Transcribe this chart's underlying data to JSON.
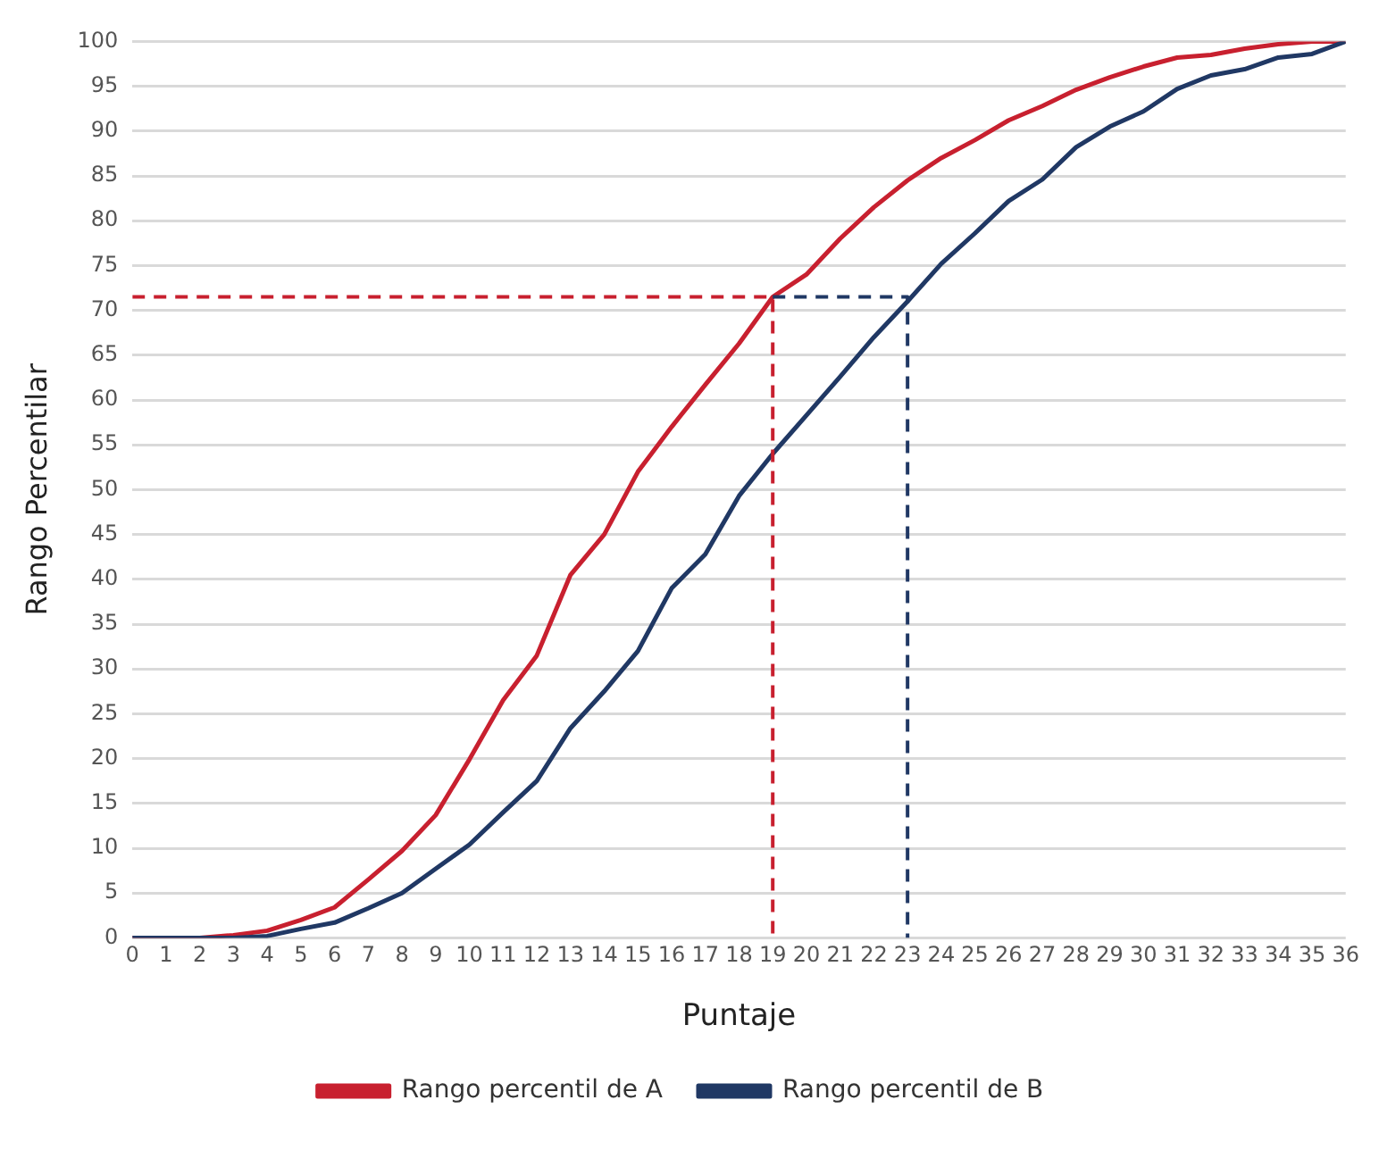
{
  "chart_data": {
    "type": "line",
    "xlabel": "Puntaje",
    "ylabel": "Rango Percentilar",
    "x": [
      0,
      1,
      2,
      3,
      4,
      5,
      6,
      7,
      8,
      9,
      10,
      11,
      12,
      13,
      14,
      15,
      16,
      17,
      18,
      19,
      20,
      21,
      22,
      23,
      24,
      25,
      26,
      27,
      28,
      29,
      30,
      31,
      32,
      33,
      34,
      35,
      36
    ],
    "series": [
      {
        "name": "Rango percentil de A",
        "color": "#c8202f",
        "values": [
          0,
          0,
          0,
          0.3,
          0.8,
          2,
          3.4,
          6.5,
          9.7,
          13.7,
          19.9,
          26.5,
          31.5,
          40.5,
          45,
          52,
          57,
          61.7,
          66.3,
          71.5,
          74,
          78,
          81.5,
          84.5,
          87,
          89,
          91.2,
          92.8,
          94.6,
          96,
          97.2,
          98.2,
          98.5,
          99.2,
          99.7,
          100,
          100
        ]
      },
      {
        "name": "Rango percentil de B",
        "color": "#203864",
        "values": [
          0,
          0,
          0,
          0,
          0.2,
          1,
          1.7,
          3.3,
          5,
          7.7,
          10.4,
          14,
          17.5,
          23.4,
          27.5,
          32,
          39,
          42.8,
          49.3,
          54,
          58.3,
          62.6,
          67,
          71,
          75.2,
          78.6,
          82.2,
          84.6,
          88.2,
          90.5,
          92.2,
          94.7,
          96.2,
          96.9,
          98.2,
          98.6,
          100
        ]
      },
      {
        "type": "line",
        "color": "#203864",
        "line_style": "dashed",
        "x": [
          19,
          23,
          23
        ],
        "values": [
          71.5,
          71.5,
          0
        ]
      },
      {
        "type": "line",
        "color": "#c8202f",
        "line_style": "dashed",
        "x": [
          0,
          19,
          19
        ],
        "values": [
          71.5,
          71.5,
          0
        ]
      }
    ],
    "xlim": [
      0,
      36
    ],
    "xticks": [
      0,
      1,
      2,
      3,
      4,
      5,
      6,
      7,
      8,
      9,
      10,
      11,
      12,
      13,
      14,
      15,
      16,
      17,
      18,
      19,
      20,
      21,
      22,
      23,
      24,
      25,
      26,
      27,
      28,
      29,
      30,
      31,
      32,
      33,
      34,
      35,
      36
    ],
    "ylim": [
      0,
      100
    ],
    "yticks": [
      0,
      5,
      10,
      15,
      20,
      25,
      30,
      35,
      40,
      45,
      50,
      55,
      60,
      65,
      70,
      75,
      80,
      85,
      90,
      95,
      100
    ],
    "grid": "y",
    "legend": "bottom",
    "marker": "none",
    "line_style": "solid"
  }
}
